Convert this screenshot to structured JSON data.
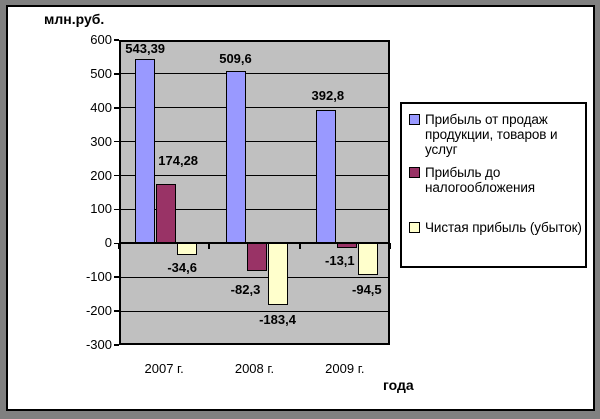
{
  "chart": {
    "y_axis_title": "млн.руб.",
    "x_axis_title": "года"
  },
  "legend": {
    "entries": [
      {
        "lines": [
          "Прибыль от продаж",
          "продукции, товаров и",
          "услуг"
        ]
      },
      {
        "lines": [
          "Прибыль до",
          "налогообложения"
        ]
      },
      {
        "lines": [
          "Чистая прибыль (убыток)"
        ]
      }
    ]
  },
  "chart_data": {
    "type": "bar",
    "title": "",
    "xlabel": "года",
    "ylabel": "млн.руб.",
    "categories": [
      "2007 г.",
      "2008 г.",
      "2009 г."
    ],
    "series": [
      {
        "name": "Прибыль от продаж продукции, товаров и услуг",
        "color": "#9999FF",
        "values": [
          543.39,
          509.6,
          392.8
        ],
        "labels": [
          "543,39",
          "509,6",
          "392,8"
        ],
        "label_dx": [
          0,
          0,
          2
        ],
        "label_dy": [
          2,
          0,
          -2
        ]
      },
      {
        "name": "Прибыль до налогообложения",
        "color": "#993366",
        "values": [
          174.28,
          -82.3,
          -13.1
        ],
        "labels": [
          "174,28",
          "-82,3",
          "-13,1"
        ],
        "label_dx": [
          12,
          -11,
          -7
        ],
        "label_dy": [
          -11,
          6,
          0
        ]
      },
      {
        "name": "Чистая прибыль (убыток)",
        "color": "#FFFFCC",
        "values": [
          -34.6,
          -183.4,
          -94.5
        ],
        "labels": [
          "-34,6",
          "-183,4",
          "-94,5"
        ],
        "label_dx": [
          -5,
          0,
          -1
        ],
        "label_dy": [
          0,
          2,
          2
        ]
      }
    ],
    "ylim": [
      -300,
      600
    ],
    "ytick_step": 100,
    "grid": true,
    "legend_position": "right",
    "plot_bg": "#C0C0C0",
    "grid_color": "#000000",
    "frame_bg": "#808080"
  }
}
